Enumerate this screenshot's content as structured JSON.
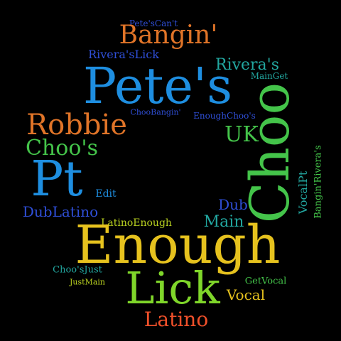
{
  "words": {
    "petes_cant": {
      "text": "Pete'sCan't",
      "color": "#2f4fd8"
    },
    "bangin": {
      "text": "Bangin'",
      "color": "#e07428"
    },
    "riveras_lick": {
      "text": "Rivera'sLick",
      "color": "#2f4fd8"
    },
    "riveras": {
      "text": "Rivera's",
      "color": "#22a7a0"
    },
    "main_get": {
      "text": "MainGet",
      "color": "#22a7a0"
    },
    "petes": {
      "text": "Pete's",
      "color": "#1e8ee0"
    },
    "choo_bangin": {
      "text": "ChooBangin'",
      "color": "#2f4fd8"
    },
    "enough_choos": {
      "text": "EnoughChoo's",
      "color": "#2f4fd8"
    },
    "robbie": {
      "text": "Robbie",
      "color": "#e07428"
    },
    "choos": {
      "text": "Choo's",
      "color": "#44c44a"
    },
    "uk": {
      "text": "UK",
      "color": "#44c44a"
    },
    "choo": {
      "text": "Choo",
      "color": "#44c44a"
    },
    "pt": {
      "text": "Pt",
      "color": "#1e8ee0"
    },
    "edit": {
      "text": "Edit",
      "color": "#1e8ee0"
    },
    "vocal_pt": {
      "text": "VocalPt",
      "color": "#22a7a0"
    },
    "bangin_riveras": {
      "text": "Bangin'Rivera's",
      "color": "#44c44a"
    },
    "dub_latino": {
      "text": "DubLatino",
      "color": "#2f4fd8"
    },
    "dub": {
      "text": "Dub",
      "color": "#2f4fd8"
    },
    "latino_enough": {
      "text": "LatinoEnough",
      "color": "#b8d020"
    },
    "main": {
      "text": "Main",
      "color": "#22a7a0"
    },
    "enough": {
      "text": "Enough",
      "color": "#e6c21e"
    },
    "choos_just": {
      "text": "Choo'sJust",
      "color": "#22a7a0"
    },
    "just_main": {
      "text": "JustMain",
      "color": "#b8d020"
    },
    "lick": {
      "text": "Lick",
      "color": "#7fd62a"
    },
    "get_vocal": {
      "text": "GetVocal",
      "color": "#44c44a"
    },
    "vocal": {
      "text": "Vocal",
      "color": "#e6c21e"
    },
    "latino": {
      "text": "Latino",
      "color": "#f0502a"
    }
  }
}
